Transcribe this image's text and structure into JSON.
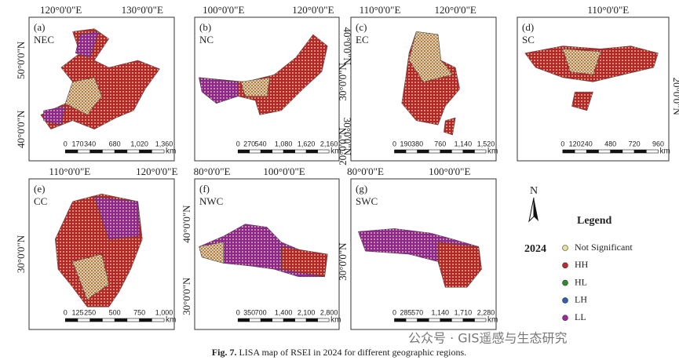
{
  "panels": [
    {
      "letter": "(a)",
      "region": "NEC",
      "lon": [
        "120°0'0\"E",
        "130°0'0\"E"
      ],
      "lat": [
        "50°0'0\"N",
        "40°0'0\"N"
      ],
      "scale": [
        "0",
        "170",
        "340",
        "680",
        "1,020",
        "1,360"
      ],
      "unit": "km"
    },
    {
      "letter": "(b)",
      "region": "NC",
      "lon": [
        "100°0'0\"E",
        "120°0'0\"E"
      ],
      "lat": [
        "40°0'0\"N",
        "30°0'0\"N"
      ],
      "scale": [
        "0",
        "270",
        "540",
        "1,080",
        "1,620",
        "2,160"
      ],
      "unit": "km"
    },
    {
      "letter": "(c)",
      "region": "EC",
      "lon": [
        "110°0'0\"E",
        "120°0'0\"E"
      ],
      "lat": [
        "30°0'0\"N",
        "20°0'0\"N"
      ],
      "scale": [
        "0",
        "190",
        "380",
        "760",
        "1,140",
        "1,520"
      ],
      "unit": "km"
    },
    {
      "letter": "(d)",
      "region": "SC",
      "lon": [
        "110°0'0\"E"
      ],
      "lat": [
        "20°0'0\"N"
      ],
      "scale": [
        "0",
        "120",
        "240",
        "480",
        "720",
        "960"
      ],
      "unit": "km"
    },
    {
      "letter": "(e)",
      "region": "CC",
      "lon": [
        "110°0'0\"E",
        "120°0'0\"E"
      ],
      "lat": [
        "30°0'0\"N"
      ],
      "scale": [
        "0",
        "125",
        "250",
        "500",
        "750",
        "1,000"
      ],
      "unit": "km"
    },
    {
      "letter": "(f)",
      "region": "NWC",
      "lon": [
        "80°0'0\"E",
        "100°0'0\"E"
      ],
      "lat": [
        "40°0'0\"N",
        "30°0'0\"N"
      ],
      "scale": [
        "0",
        "350",
        "700",
        "1,400",
        "2,100",
        "2,800"
      ],
      "unit": "km"
    },
    {
      "letter": "(g)",
      "region": "SWC",
      "lon": [
        "80°0'0\"E",
        "100°0'0\"E"
      ],
      "lat": [
        "30°0'0\"N"
      ],
      "scale": [
        "0",
        "285",
        "570",
        "1,140",
        "1,710",
        "2,280"
      ],
      "unit": "km"
    }
  ],
  "legend": {
    "north": "N",
    "title": "Legend",
    "year": "2024",
    "items": [
      {
        "label": "Not Significant",
        "color": "#e4e49a"
      },
      {
        "label": "HH",
        "color": "#c0282d"
      },
      {
        "label": "HL",
        "color": "#2e8b2e"
      },
      {
        "label": "LH",
        "color": "#2f5fb0"
      },
      {
        "label": "LL",
        "color": "#a0279a"
      }
    ]
  },
  "caption": {
    "label": "Fig. 7.",
    "text": "LISA map of RSEI in 2024 for different geographic regions."
  },
  "watermark": "公众号 · GIS遥感与生态研究"
}
